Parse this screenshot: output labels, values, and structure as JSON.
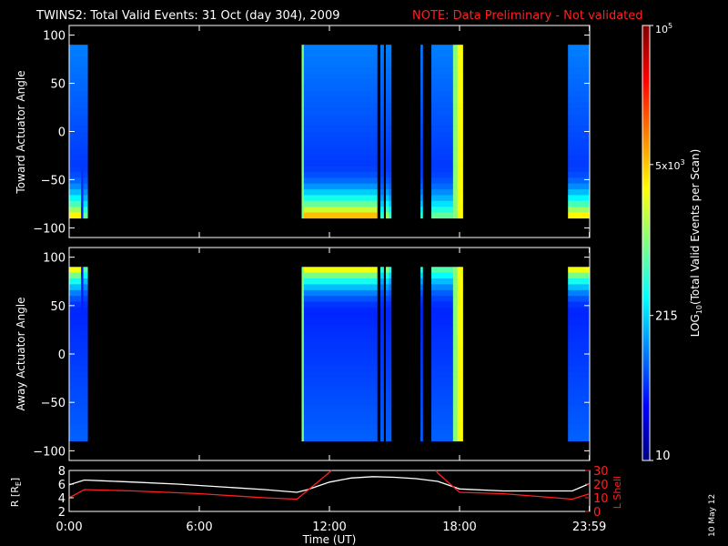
{
  "title": "TWINS2: Total Valid Events: 31 Oct (day 304), 2009",
  "note": "NOTE: Data Preliminary - Not validated",
  "datestamp": "10 May 12",
  "colors": {
    "background": "#000000",
    "foreground": "#ffffff",
    "note": "#ff2020",
    "lshell": "#ff2020"
  },
  "chart_data": [
    {
      "type": "heatmap",
      "ylabel": "Toward Actuator Angle",
      "ylim": [
        -110,
        110
      ],
      "yticks": [
        100,
        50,
        0,
        -50,
        -100
      ],
      "xlim": [
        0,
        24
      ],
      "angle_range": [
        -90,
        90
      ],
      "profile": "toward",
      "segments": [
        {
          "start": 0.0,
          "end": 0.55,
          "level": 0.45
        },
        {
          "start": 0.55,
          "end": 0.65,
          "level": 0.0
        },
        {
          "start": 0.65,
          "end": 0.85,
          "level": 0.3
        },
        {
          "start": 10.72,
          "end": 10.82,
          "level": 0.5,
          "uniform": true
        },
        {
          "start": 10.82,
          "end": 14.2,
          "level": 0.5
        },
        {
          "start": 14.35,
          "end": 14.5,
          "level": 0.25
        },
        {
          "start": 14.6,
          "end": 14.75,
          "level": 0.35
        },
        {
          "start": 14.75,
          "end": 14.85,
          "level": 0.25
        },
        {
          "start": 16.2,
          "end": 16.3,
          "level": 0.25
        },
        {
          "start": 16.7,
          "end": 17.7,
          "level": 0.3
        },
        {
          "start": 17.7,
          "end": 17.9,
          "level": 0.5,
          "uniform": true
        },
        {
          "start": 17.9,
          "end": 18.15,
          "level": 0.62,
          "uniform": true
        },
        {
          "start": 23.0,
          "end": 24.0,
          "level": 0.45
        }
      ]
    },
    {
      "type": "heatmap",
      "ylabel": "Away Actuator Angle",
      "ylim": [
        -110,
        110
      ],
      "yticks": [
        100,
        50,
        0,
        -50,
        -100
      ],
      "xlim": [
        0,
        24
      ],
      "angle_range": [
        -90,
        90
      ],
      "profile": "away",
      "segments": [
        {
          "start": 0.0,
          "end": 0.55,
          "level": 0.45
        },
        {
          "start": 0.55,
          "end": 0.65,
          "level": 0.0
        },
        {
          "start": 0.65,
          "end": 0.85,
          "level": 0.3
        },
        {
          "start": 10.72,
          "end": 10.82,
          "level": 0.5,
          "uniform": true
        },
        {
          "start": 10.82,
          "end": 14.2,
          "level": 0.45
        },
        {
          "start": 14.35,
          "end": 14.5,
          "level": 0.25
        },
        {
          "start": 14.6,
          "end": 14.75,
          "level": 0.35
        },
        {
          "start": 14.75,
          "end": 14.85,
          "level": 0.25
        },
        {
          "start": 16.2,
          "end": 16.3,
          "level": 0.25
        },
        {
          "start": 16.7,
          "end": 17.7,
          "level": 0.3
        },
        {
          "start": 17.7,
          "end": 17.9,
          "level": 0.5,
          "uniform": true
        },
        {
          "start": 17.9,
          "end": 18.15,
          "level": 0.62,
          "uniform": true
        },
        {
          "start": 23.0,
          "end": 24.0,
          "level": 0.45
        }
      ]
    },
    {
      "type": "line",
      "xlabel": "Time (UT)",
      "xlim": [
        0,
        24
      ],
      "xticks": [
        0,
        6,
        12,
        18,
        23.983
      ],
      "xtick_labels": [
        "0:00",
        "6:00",
        "12:00",
        "18:00",
        "23:59"
      ],
      "ylabel": "R [R",
      "ylabel_sub": "E",
      "ylabel_end": "]",
      "ylim": [
        2,
        8
      ],
      "yticks": [
        2,
        4,
        6,
        8
      ],
      "y2label": "L Shell",
      "y2lim": [
        0,
        30
      ],
      "y2ticks": [
        0,
        10,
        20,
        30
      ],
      "series": [
        {
          "axis": "left",
          "color": "#ffffff",
          "x": [
            0,
            0.7,
            1.5,
            3,
            5,
            7,
            9,
            10.5,
            11,
            12,
            13,
            14,
            15,
            16,
            17,
            18,
            20,
            22,
            23.2,
            24
          ],
          "y": [
            5.9,
            6.6,
            6.5,
            6.3,
            6.0,
            5.6,
            5.2,
            4.8,
            5.2,
            6.3,
            6.9,
            7.1,
            7.0,
            6.8,
            6.4,
            5.3,
            5.0,
            5.0,
            5.0,
            6.1
          ]
        },
        {
          "axis": "right",
          "color": "#ff2020",
          "x": [
            0,
            0.7,
            3,
            6,
            9,
            10.5,
            11.5,
            12.1,
            12.2,
            16.9,
            17.0,
            18.0,
            20,
            23.2,
            24
          ],
          "y": [
            10,
            16,
            15,
            13,
            10,
            9,
            22,
            30,
            null,
            30,
            28,
            14,
            13,
            9,
            13
          ]
        }
      ]
    }
  ],
  "colorbar": {
    "label_main": "LOG",
    "label_sub": "10",
    "label_rest": "(Total Valid  Events per Scan)",
    "ticks": [
      {
        "base": "10",
        "sup": "",
        "frac": 0.0
      },
      {
        "base": "215",
        "sup": "",
        "frac": 0.3333
      },
      {
        "base": "5x10",
        "sup": "3",
        "frac": 0.6803
      },
      {
        "base": "10",
        "sup": "5",
        "frac": 1.0
      }
    ]
  }
}
